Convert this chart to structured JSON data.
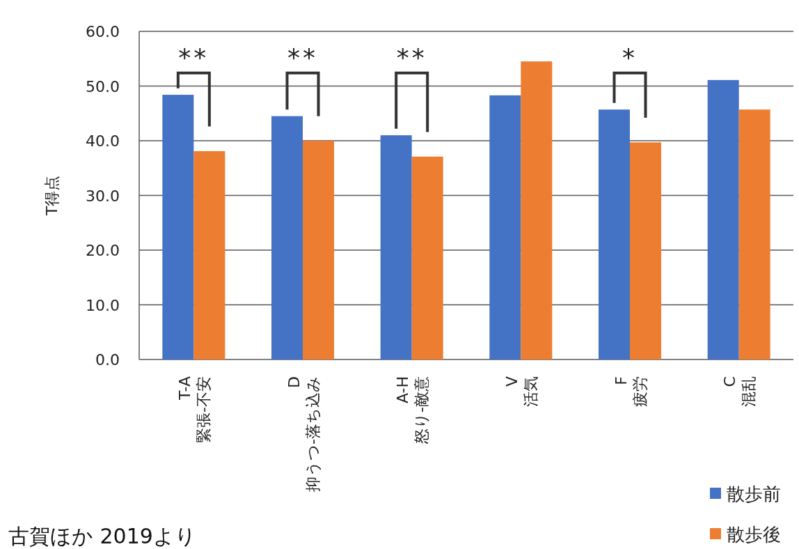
{
  "chart_data": {
    "type": "bar",
    "ylabel": "T得点",
    "categories": [
      "T-A\n緊張-不安",
      "D\n抑うつ-落ち込み",
      "A-H\n怒り-敵意",
      "V\n活気",
      "F\n疲労",
      "C\n混乱"
    ],
    "series": [
      {
        "name": "散歩前",
        "color": "#4472c4",
        "values": [
          48.4,
          44.5,
          41.0,
          48.3,
          45.7,
          51.1
        ]
      },
      {
        "name": "散歩後",
        "color": "#ed7d31",
        "values": [
          38.1,
          40.0,
          37.1,
          54.5,
          39.7,
          45.7
        ]
      }
    ],
    "ylim": [
      0,
      60
    ],
    "yticks": [
      {
        "value": 0,
        "label": "0.0"
      },
      {
        "value": 10,
        "label": "10.0"
      },
      {
        "value": 20,
        "label": "20.0"
      },
      {
        "value": 30,
        "label": "30.0"
      },
      {
        "value": 40,
        "label": "40.0"
      },
      {
        "value": 50,
        "label": "50.0"
      },
      {
        "value": 60,
        "label": "60.0"
      }
    ],
    "grid": "y",
    "legend": "bottom right",
    "annotations": [
      "**",
      "**",
      "**",
      "*",
      "古賀ほか 2019より"
    ]
  }
}
